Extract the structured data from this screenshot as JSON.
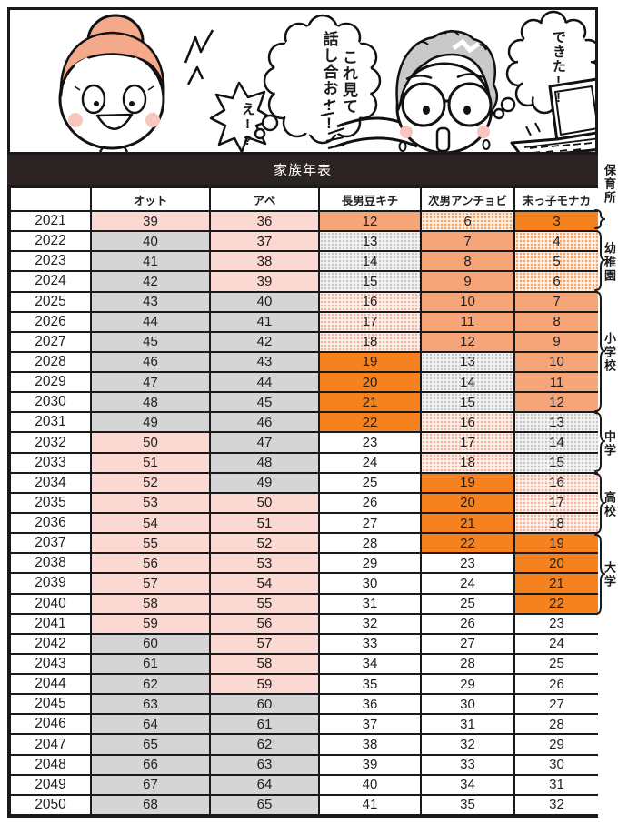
{
  "comic": {
    "bubble_eh": "え!?",
    "bubble_talk_line1": "これ見て",
    "bubble_talk_line2": "話し合お!!",
    "bubble_done": "できた!!"
  },
  "title": "家族年表",
  "table": {
    "columns": [
      "",
      "オット",
      "アベ",
      "長男豆キチ",
      "次男アンチョビ",
      "末っ子モナカ"
    ],
    "rows": [
      {
        "year": "2021",
        "cells": [
          [
            "39",
            "pink"
          ],
          [
            "36",
            "pink"
          ],
          [
            "12",
            "salmon"
          ],
          [
            "6",
            "dorange"
          ],
          [
            "3",
            "orange"
          ]
        ]
      },
      {
        "year": "2022",
        "cells": [
          [
            "40",
            "gray"
          ],
          [
            "37",
            "pink"
          ],
          [
            "13",
            "dgray"
          ],
          [
            "7",
            "salmon"
          ],
          [
            "4",
            "dorange"
          ]
        ]
      },
      {
        "year": "2023",
        "cells": [
          [
            "41",
            "gray"
          ],
          [
            "38",
            "pink"
          ],
          [
            "14",
            "dgray"
          ],
          [
            "8",
            "salmon"
          ],
          [
            "5",
            "dorange"
          ]
        ]
      },
      {
        "year": "2024",
        "cells": [
          [
            "42",
            "gray"
          ],
          [
            "39",
            "pink"
          ],
          [
            "15",
            "dgray"
          ],
          [
            "9",
            "salmon"
          ],
          [
            "6",
            "dorange"
          ]
        ]
      },
      {
        "year": "2025",
        "cells": [
          [
            "43",
            "gray"
          ],
          [
            "40",
            "gray"
          ],
          [
            "16",
            "dpink"
          ],
          [
            "10",
            "salmon"
          ],
          [
            "7",
            "salmon"
          ]
        ]
      },
      {
        "year": "2026",
        "cells": [
          [
            "44",
            "gray"
          ],
          [
            "41",
            "gray"
          ],
          [
            "17",
            "dpink"
          ],
          [
            "11",
            "salmon"
          ],
          [
            "8",
            "salmon"
          ]
        ]
      },
      {
        "year": "2027",
        "cells": [
          [
            "45",
            "gray"
          ],
          [
            "42",
            "gray"
          ],
          [
            "18",
            "dpink"
          ],
          [
            "12",
            "salmon"
          ],
          [
            "9",
            "salmon"
          ]
        ]
      },
      {
        "year": "2028",
        "cells": [
          [
            "46",
            "gray"
          ],
          [
            "43",
            "gray"
          ],
          [
            "19",
            "orange"
          ],
          [
            "13",
            "dgray"
          ],
          [
            "10",
            "salmon"
          ]
        ]
      },
      {
        "year": "2029",
        "cells": [
          [
            "47",
            "gray"
          ],
          [
            "44",
            "gray"
          ],
          [
            "20",
            "orange"
          ],
          [
            "14",
            "dgray"
          ],
          [
            "11",
            "salmon"
          ]
        ]
      },
      {
        "year": "2030",
        "cells": [
          [
            "48",
            "gray"
          ],
          [
            "45",
            "gray"
          ],
          [
            "21",
            "orange"
          ],
          [
            "15",
            "dgray"
          ],
          [
            "12",
            "salmon"
          ]
        ]
      },
      {
        "year": "2031",
        "cells": [
          [
            "49",
            "gray"
          ],
          [
            "46",
            "gray"
          ],
          [
            "22",
            "orange"
          ],
          [
            "16",
            "dpink"
          ],
          [
            "13",
            "dgray"
          ]
        ]
      },
      {
        "year": "2032",
        "cells": [
          [
            "50",
            "pink"
          ],
          [
            "47",
            "gray"
          ],
          [
            "23",
            "white"
          ],
          [
            "17",
            "dpink"
          ],
          [
            "14",
            "dgray"
          ]
        ]
      },
      {
        "year": "2033",
        "cells": [
          [
            "51",
            "pink"
          ],
          [
            "48",
            "gray"
          ],
          [
            "24",
            "white"
          ],
          [
            "18",
            "dpink"
          ],
          [
            "15",
            "dgray"
          ]
        ]
      },
      {
        "year": "2034",
        "cells": [
          [
            "52",
            "pink"
          ],
          [
            "49",
            "gray"
          ],
          [
            "25",
            "white"
          ],
          [
            "19",
            "orange"
          ],
          [
            "16",
            "dpink"
          ]
        ]
      },
      {
        "year": "2035",
        "cells": [
          [
            "53",
            "pink"
          ],
          [
            "50",
            "pink"
          ],
          [
            "26",
            "white"
          ],
          [
            "20",
            "orange"
          ],
          [
            "17",
            "dpink"
          ]
        ]
      },
      {
        "year": "2036",
        "cells": [
          [
            "54",
            "pink"
          ],
          [
            "51",
            "pink"
          ],
          [
            "27",
            "white"
          ],
          [
            "21",
            "orange"
          ],
          [
            "18",
            "dpink"
          ]
        ]
      },
      {
        "year": "2037",
        "cells": [
          [
            "55",
            "pink"
          ],
          [
            "52",
            "pink"
          ],
          [
            "28",
            "white"
          ],
          [
            "22",
            "orange"
          ],
          [
            "19",
            "orange"
          ]
        ]
      },
      {
        "year": "2038",
        "cells": [
          [
            "56",
            "pink"
          ],
          [
            "53",
            "pink"
          ],
          [
            "29",
            "white"
          ],
          [
            "23",
            "white"
          ],
          [
            "20",
            "orange"
          ]
        ]
      },
      {
        "year": "2039",
        "cells": [
          [
            "57",
            "pink"
          ],
          [
            "54",
            "pink"
          ],
          [
            "30",
            "white"
          ],
          [
            "24",
            "white"
          ],
          [
            "21",
            "orange"
          ]
        ]
      },
      {
        "year": "2040",
        "cells": [
          [
            "58",
            "pink"
          ],
          [
            "55",
            "pink"
          ],
          [
            "31",
            "white"
          ],
          [
            "25",
            "white"
          ],
          [
            "22",
            "orange"
          ]
        ]
      },
      {
        "year": "2041",
        "cells": [
          [
            "59",
            "pink"
          ],
          [
            "56",
            "pink"
          ],
          [
            "32",
            "white"
          ],
          [
            "26",
            "white"
          ],
          [
            "23",
            "white"
          ]
        ]
      },
      {
        "year": "2042",
        "cells": [
          [
            "60",
            "gray"
          ],
          [
            "57",
            "pink"
          ],
          [
            "33",
            "white"
          ],
          [
            "27",
            "white"
          ],
          [
            "24",
            "white"
          ]
        ]
      },
      {
        "year": "2043",
        "cells": [
          [
            "61",
            "gray"
          ],
          [
            "58",
            "pink"
          ],
          [
            "34",
            "white"
          ],
          [
            "28",
            "white"
          ],
          [
            "25",
            "white"
          ]
        ]
      },
      {
        "year": "2044",
        "cells": [
          [
            "62",
            "gray"
          ],
          [
            "59",
            "pink"
          ],
          [
            "35",
            "white"
          ],
          [
            "29",
            "white"
          ],
          [
            "26",
            "white"
          ]
        ]
      },
      {
        "year": "2045",
        "cells": [
          [
            "63",
            "gray"
          ],
          [
            "60",
            "gray"
          ],
          [
            "36",
            "white"
          ],
          [
            "30",
            "white"
          ],
          [
            "27",
            "white"
          ]
        ]
      },
      {
        "year": "2046",
        "cells": [
          [
            "64",
            "gray"
          ],
          [
            "61",
            "gray"
          ],
          [
            "37",
            "white"
          ],
          [
            "31",
            "white"
          ],
          [
            "28",
            "white"
          ]
        ]
      },
      {
        "year": "2047",
        "cells": [
          [
            "65",
            "gray"
          ],
          [
            "62",
            "gray"
          ],
          [
            "38",
            "white"
          ],
          [
            "32",
            "white"
          ],
          [
            "29",
            "white"
          ]
        ]
      },
      {
        "year": "2048",
        "cells": [
          [
            "66",
            "gray"
          ],
          [
            "63",
            "gray"
          ],
          [
            "39",
            "white"
          ],
          [
            "33",
            "white"
          ],
          [
            "30",
            "white"
          ]
        ]
      },
      {
        "year": "2049",
        "cells": [
          [
            "67",
            "gray"
          ],
          [
            "64",
            "gray"
          ],
          [
            "40",
            "white"
          ],
          [
            "34",
            "white"
          ],
          [
            "31",
            "white"
          ]
        ]
      },
      {
        "year": "2050",
        "cells": [
          [
            "68",
            "gray"
          ],
          [
            "65",
            "gray"
          ],
          [
            "41",
            "white"
          ],
          [
            "35",
            "white"
          ],
          [
            "32",
            "white"
          ]
        ]
      }
    ]
  },
  "annotations": [
    {
      "label": "保育所"
    },
    {
      "label": "幼稚園"
    },
    {
      "label": "小学校"
    },
    {
      "label": "中学"
    },
    {
      "label": "高校"
    },
    {
      "label": "大学"
    }
  ],
  "colors": {
    "title_bg": "#2b2423",
    "pink": "#fbd9d2",
    "gray": "#d5d5d5",
    "salmon": "#f5a578",
    "orange": "#f5821f",
    "dot_orange": "#f3a76d",
    "dot_pink": "#f2b49e",
    "dot_gray": "#c7c7c7",
    "hair_woman": "#f5a98b",
    "hair_man": "#c9c9c9",
    "blush": "#f9c6bf"
  }
}
